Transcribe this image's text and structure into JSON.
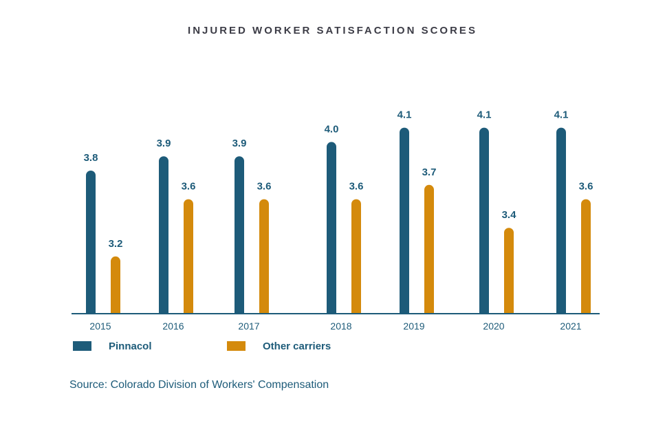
{
  "chart_data": {
    "type": "bar",
    "title": "INJURED WORKER SATISFACTION SCORES",
    "categories": [
      "2015",
      "2016",
      "2017",
      "2018",
      "2019",
      "2020",
      "2021"
    ],
    "series": [
      {
        "name": "Pinnacol",
        "color": "#1d5b79",
        "values": [
          3.8,
          3.9,
          3.9,
          4.0,
          4.1,
          4.1,
          4.1
        ],
        "labels": [
          "3.8",
          "3.9",
          "3.9",
          "4.0",
          "4.1",
          "4.1",
          "4.1"
        ]
      },
      {
        "name": "Other carriers",
        "color": "#d48a0c",
        "values": [
          3.2,
          3.6,
          3.6,
          3.6,
          3.7,
          3.4,
          3.6
        ],
        "labels": [
          "3.2",
          "3.6",
          "3.6",
          "3.6",
          "3.7",
          "3.4",
          "3.6"
        ]
      }
    ],
    "xlabel": "",
    "ylabel": "",
    "ylim": [
      2.8,
      4.2
    ],
    "grid": false,
    "legend_position": "bottom-left",
    "axis_color": "#1d5b79"
  },
  "source": "Source: Colorado Division of Workers' Compensation"
}
